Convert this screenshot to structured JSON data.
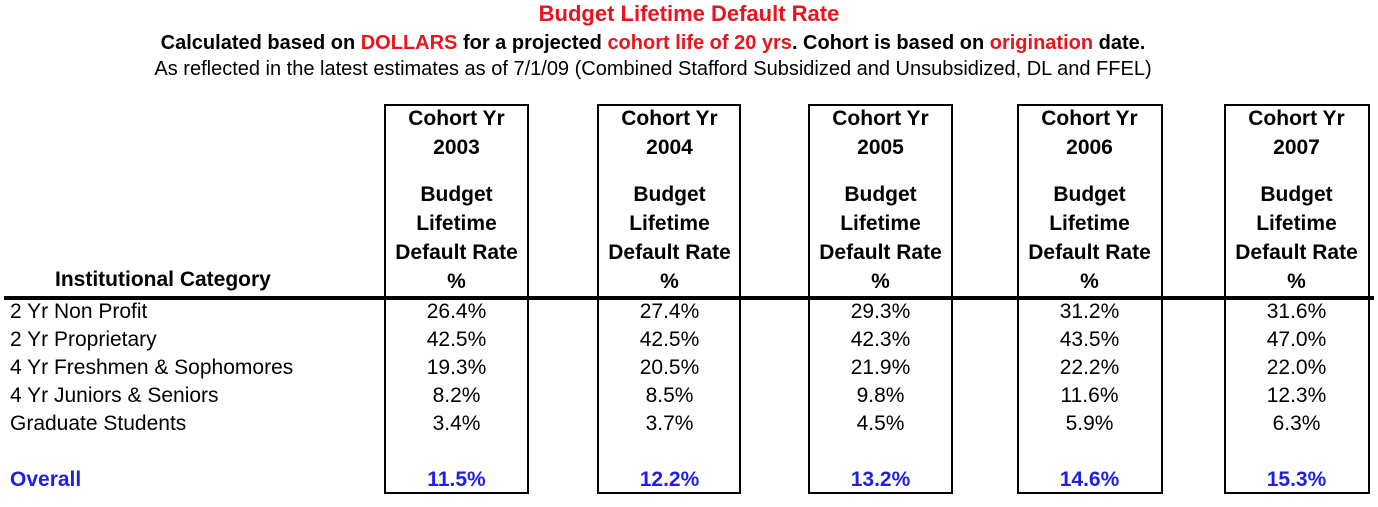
{
  "title": "Budget Lifetime Default Rate",
  "subtitle1": {
    "p1": "Calculated based on ",
    "r1": "DOLLARS",
    "p2": " for a projected ",
    "r2": "cohort life of 20 yrs",
    "p3": ".  Cohort is based on ",
    "r3": "origination",
    "p4": " date."
  },
  "subtitle2": "As reflected in the latest estimates as of 7/1/09 (Combined Stafford Subsidized and Unsubsidized, DL and FFEL)",
  "table": {
    "category_header": "Institutional Category",
    "columns": [
      {
        "l1": "Cohort Yr",
        "l2": "2003",
        "l3": "Budget",
        "l4": "Lifetime",
        "l5": "Default Rate",
        "l6": "%"
      },
      {
        "l1": "Cohort Yr",
        "l2": "2004",
        "l3": "Budget",
        "l4": "Lifetime",
        "l5": "Default Rate",
        "l6": "%"
      },
      {
        "l1": "Cohort Yr",
        "l2": "2005",
        "l3": "Budget",
        "l4": "Lifetime",
        "l5": "Default Rate",
        "l6": "%"
      },
      {
        "l1": "Cohort Yr",
        "l2": "2006",
        "l3": "Budget",
        "l4": "Lifetime",
        "l5": "Default Rate",
        "l6": "%"
      },
      {
        "l1": "Cohort Yr",
        "l2": "2007",
        "l3": "Budget",
        "l4": "Lifetime",
        "l5": "Default Rate",
        "l6": "%"
      }
    ],
    "rows": [
      {
        "label": "2 Yr Non Profit",
        "values": [
          "26.4%",
          "27.4%",
          "29.3%",
          "31.2%",
          "31.6%"
        ]
      },
      {
        "label": "2 Yr Proprietary",
        "values": [
          "42.5%",
          "42.5%",
          "42.3%",
          "43.5%",
          "47.0%"
        ]
      },
      {
        "label": "4 Yr Freshmen & Sophomores",
        "values": [
          "19.3%",
          "20.5%",
          "21.9%",
          "22.2%",
          "22.0%"
        ]
      },
      {
        "label": "4 Yr Juniors & Seniors",
        "values": [
          "8.2%",
          "8.5%",
          "9.8%",
          "11.6%",
          "12.3%"
        ]
      },
      {
        "label": "Graduate Students",
        "values": [
          "3.4%",
          "3.7%",
          "4.5%",
          "5.9%",
          "6.3%"
        ]
      }
    ],
    "overall": {
      "label": "Overall",
      "values": [
        "11.5%",
        "12.2%",
        "13.2%",
        "14.6%",
        "15.3%"
      ]
    }
  },
  "colors": {
    "red": "#e8141e",
    "blue": "#1f1fe6"
  }
}
